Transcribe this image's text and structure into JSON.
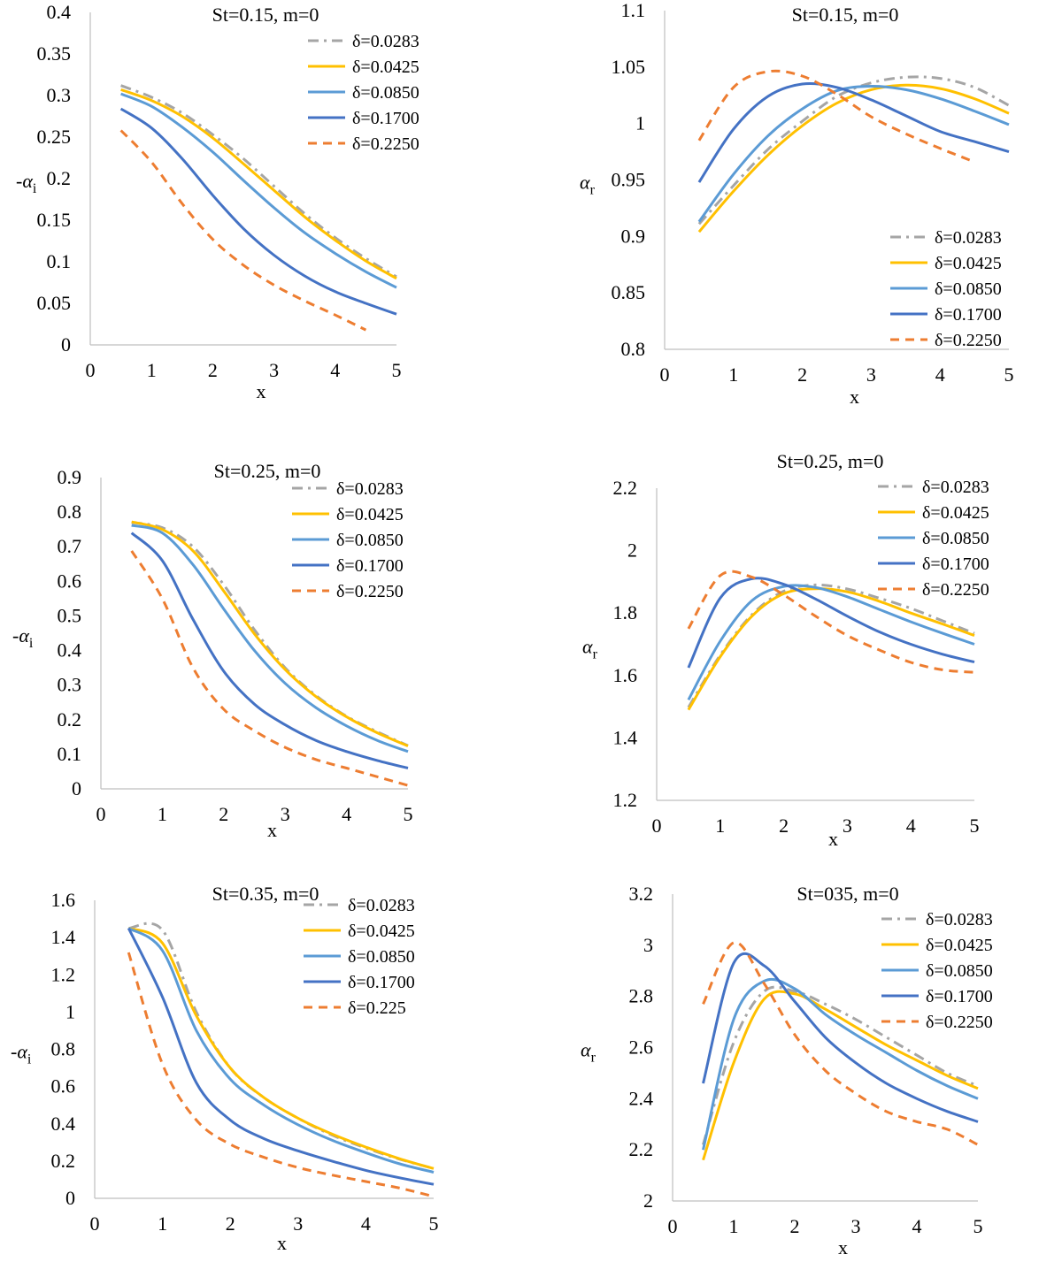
{
  "colors": {
    "d0283": "#a5a5a5",
    "d0425": "#ffc000",
    "d0850": "#5b9bd5",
    "d1700": "#4472c4",
    "d2250": "#ed7d31",
    "axis": "#bfbfbf"
  },
  "chart_data": [
    {
      "type": "line",
      "title": "St=0.15, m=0",
      "xlabel": "x",
      "ylabel_prefix": "-",
      "ylabel": "α",
      "ylabel_sub": "i",
      "xlim": [
        0,
        5
      ],
      "ylim": [
        0,
        0.4
      ],
      "xticks": [
        0,
        1,
        2,
        3,
        4,
        5
      ],
      "ytick_labels": [
        "0",
        "0.05",
        "0.1",
        "0.15",
        "0.2",
        "0.25",
        "0.3",
        "0.35",
        "0.4"
      ],
      "series": [
        {
          "name": "δ=0.0283",
          "key": "d0283",
          "style": "dashdot",
          "x": [
            0.5,
            1,
            1.5,
            2,
            2.5,
            3,
            3.5,
            4,
            4.5,
            5
          ],
          "values": [
            0.312,
            0.298,
            0.279,
            0.253,
            0.224,
            0.191,
            0.158,
            0.129,
            0.104,
            0.082
          ]
        },
        {
          "name": "δ=0.0425",
          "key": "d0425",
          "style": "solid",
          "x": [
            0.5,
            1,
            1.5,
            2,
            2.5,
            3,
            3.5,
            4,
            4.5,
            5
          ],
          "values": [
            0.307,
            0.294,
            0.275,
            0.249,
            0.218,
            0.186,
            0.154,
            0.126,
            0.101,
            0.08
          ]
        },
        {
          "name": "δ=0.0850",
          "key": "d0850",
          "style": "solid",
          "x": [
            0.5,
            1,
            1.5,
            2,
            2.5,
            3,
            3.5,
            4,
            4.5,
            5
          ],
          "values": [
            0.302,
            0.287,
            0.262,
            0.232,
            0.198,
            0.165,
            0.135,
            0.11,
            0.088,
            0.069
          ]
        },
        {
          "name": "δ=0.1700",
          "key": "d1700",
          "style": "solid",
          "x": [
            0.5,
            1,
            1.5,
            2,
            2.5,
            3,
            3.5,
            4,
            4.5,
            5
          ],
          "values": [
            0.284,
            0.261,
            0.224,
            0.18,
            0.14,
            0.108,
            0.083,
            0.064,
            0.05,
            0.037
          ]
        },
        {
          "name": "δ=0.2250",
          "key": "d2250",
          "style": "dashed",
          "x": [
            0.5,
            1,
            1.5,
            2,
            2.5,
            3,
            3.5,
            4,
            4.5
          ],
          "values": [
            0.258,
            0.22,
            0.17,
            0.127,
            0.096,
            0.072,
            0.053,
            0.036,
            0.018
          ]
        }
      ]
    },
    {
      "type": "line",
      "title": "St=0.15, m=0",
      "xlabel": "x",
      "ylabel_prefix": "",
      "ylabel": "α",
      "ylabel_sub": "r",
      "xlim": [
        0,
        5
      ],
      "ylim": [
        0.8,
        1.1
      ],
      "xticks": [
        0,
        1,
        2,
        3,
        4,
        5
      ],
      "ytick_labels": [
        "0.8",
        "0.85",
        "0.9",
        "0.95",
        "1",
        "1.05",
        "1.1"
      ],
      "series": [
        {
          "name": "δ=0.0283",
          "key": "d0283",
          "style": "dashdot",
          "x": [
            0.5,
            1,
            1.5,
            2,
            2.5,
            3,
            3.5,
            4,
            4.5,
            5
          ],
          "values": [
            0.911,
            0.945,
            0.977,
            1.002,
            1.024,
            1.036,
            1.041,
            1.04,
            1.032,
            1.016
          ]
        },
        {
          "name": "δ=0.0425",
          "key": "d0425",
          "style": "solid",
          "x": [
            0.5,
            1,
            1.5,
            2,
            2.5,
            3,
            3.5,
            4,
            4.5,
            5
          ],
          "values": [
            0.904,
            0.94,
            0.972,
            0.998,
            1.018,
            1.03,
            1.034,
            1.031,
            1.022,
            1.009
          ]
        },
        {
          "name": "δ=0.0850",
          "key": "d0850",
          "style": "solid",
          "x": [
            0.5,
            1,
            1.5,
            2,
            2.5,
            3,
            3.5,
            4,
            4.5,
            5
          ],
          "values": [
            0.913,
            0.955,
            0.989,
            1.013,
            1.029,
            1.033,
            1.03,
            1.022,
            1.011,
            0.999
          ]
        },
        {
          "name": "δ=0.1700",
          "key": "d1700",
          "style": "solid",
          "x": [
            0.5,
            1,
            1.5,
            2,
            2.5,
            3,
            3.5,
            4,
            4.5,
            5
          ],
          "values": [
            0.948,
            0.995,
            1.024,
            1.035,
            1.032,
            1.021,
            1.007,
            0.993,
            0.984,
            0.975
          ]
        },
        {
          "name": "δ=0.2250",
          "key": "d2250",
          "style": "dashed",
          "x": [
            0.5,
            1,
            1.5,
            2,
            2.5,
            3,
            3.5,
            4,
            4.5
          ],
          "values": [
            0.985,
            1.032,
            1.046,
            1.042,
            1.026,
            1.006,
            0.991,
            0.978,
            0.966
          ]
        }
      ]
    },
    {
      "type": "line",
      "title": "St=0.25, m=0",
      "xlabel": "x",
      "ylabel_prefix": "-",
      "ylabel": "α",
      "ylabel_sub": "i",
      "xlim": [
        0,
        5
      ],
      "ylim": [
        0,
        0.9
      ],
      "xticks": [
        0,
        1,
        2,
        3,
        4,
        5
      ],
      "ytick_labels": [
        "0",
        "0.1",
        "0.2",
        "0.3",
        "0.4",
        "0.5",
        "0.6",
        "0.7",
        "0.8",
        "0.9"
      ],
      "series": [
        {
          "name": "δ=0.0283",
          "key": "d0283",
          "style": "dashdot",
          "x": [
            0.5,
            1,
            1.5,
            2,
            2.5,
            3,
            3.5,
            4,
            4.5,
            5
          ],
          "values": [
            0.77,
            0.755,
            0.7,
            0.59,
            0.46,
            0.35,
            0.27,
            0.21,
            0.165,
            0.125
          ]
        },
        {
          "name": "δ=0.0425",
          "key": "d0425",
          "style": "solid",
          "x": [
            0.5,
            1,
            1.5,
            2,
            2.5,
            3,
            3.5,
            4,
            4.5,
            5
          ],
          "values": [
            0.772,
            0.75,
            0.688,
            0.572,
            0.448,
            0.345,
            0.267,
            0.208,
            0.162,
            0.124
          ]
        },
        {
          "name": "δ=0.0850",
          "key": "d0850",
          "style": "solid",
          "x": [
            0.5,
            1,
            1.5,
            2,
            2.5,
            3,
            3.5,
            4,
            4.5,
            5
          ],
          "values": [
            0.762,
            0.74,
            0.648,
            0.52,
            0.4,
            0.305,
            0.235,
            0.182,
            0.14,
            0.108
          ]
        },
        {
          "name": "δ=0.1700",
          "key": "d1700",
          "style": "solid",
          "x": [
            0.5,
            1,
            1.5,
            2,
            2.5,
            3,
            3.5,
            4,
            4.5,
            5
          ],
          "values": [
            0.74,
            0.66,
            0.49,
            0.34,
            0.245,
            0.185,
            0.14,
            0.108,
            0.082,
            0.06
          ]
        },
        {
          "name": "δ=0.2250",
          "key": "d2250",
          "style": "dashed",
          "x": [
            0.5,
            1,
            1.5,
            2,
            2.5,
            3,
            3.5,
            4,
            4.5,
            5
          ],
          "values": [
            0.688,
            0.55,
            0.35,
            0.23,
            0.168,
            0.12,
            0.085,
            0.06,
            0.035,
            0.01
          ]
        }
      ]
    },
    {
      "type": "line",
      "title": "St=0.25, m=0",
      "xlabel": "x",
      "ylabel_prefix": "",
      "ylabel": "α",
      "ylabel_sub": "r",
      "xlim": [
        0,
        5
      ],
      "ylim": [
        1.2,
        2.2
      ],
      "xticks": [
        0,
        1,
        2,
        3,
        4,
        5
      ],
      "ytick_labels": [
        "1.2",
        "1.4",
        "1.6",
        "1.8",
        "2",
        "2.2"
      ],
      "series": [
        {
          "name": "δ=0.0283",
          "key": "d0283",
          "style": "dashdot",
          "x": [
            0.5,
            1,
            1.5,
            2,
            2.5,
            3,
            3.5,
            4,
            4.5,
            5
          ],
          "values": [
            1.498,
            1.665,
            1.795,
            1.87,
            1.89,
            1.877,
            1.848,
            1.815,
            1.775,
            1.735
          ]
        },
        {
          "name": "δ=0.0425",
          "key": "d0425",
          "style": "solid",
          "x": [
            0.5,
            1,
            1.5,
            2,
            2.5,
            3,
            3.5,
            4,
            4.5,
            5
          ],
          "values": [
            1.49,
            1.66,
            1.79,
            1.862,
            1.878,
            1.868,
            1.838,
            1.8,
            1.765,
            1.728
          ]
        },
        {
          "name": "δ=0.0850",
          "key": "d0850",
          "style": "solid",
          "x": [
            0.5,
            1,
            1.5,
            2,
            2.5,
            3,
            3.5,
            4,
            4.5,
            5
          ],
          "values": [
            1.522,
            1.71,
            1.84,
            1.885,
            1.882,
            1.852,
            1.812,
            1.772,
            1.735,
            1.7
          ]
        },
        {
          "name": "δ=0.1700",
          "key": "d1700",
          "style": "solid",
          "x": [
            0.5,
            1,
            1.5,
            2,
            2.5,
            3,
            3.5,
            4,
            4.5,
            5
          ],
          "values": [
            1.625,
            1.848,
            1.91,
            1.892,
            1.845,
            1.79,
            1.74,
            1.7,
            1.668,
            1.643
          ]
        },
        {
          "name": "δ=0.2250",
          "key": "d2250",
          "style": "dashed",
          "x": [
            0.5,
            1,
            1.5,
            2,
            2.5,
            3,
            3.5,
            4,
            4.5,
            5
          ],
          "values": [
            1.75,
            1.92,
            1.915,
            1.858,
            1.79,
            1.728,
            1.682,
            1.642,
            1.618,
            1.61
          ]
        }
      ]
    },
    {
      "type": "line",
      "title": "St=0.35, m=0",
      "xlabel": "x",
      "ylabel_prefix": "-",
      "ylabel": "α",
      "ylabel_sub": "i",
      "xlim": [
        0,
        5
      ],
      "ylim": [
        0,
        1.6
      ],
      "xticks": [
        0,
        1,
        2,
        3,
        4,
        5
      ],
      "ytick_labels": [
        "0",
        "0.2",
        "0.4",
        "0.6",
        "0.8",
        "1",
        "1.2",
        "1.4",
        "1.6"
      ],
      "series": [
        {
          "name": "δ=0.0283",
          "key": "d0283",
          "style": "dashdot",
          "x": [
            0.5,
            1,
            1.5,
            2,
            2.5,
            3,
            3.5,
            4,
            4.5,
            5
          ],
          "values": [
            1.45,
            1.44,
            1.0,
            0.7,
            0.54,
            0.43,
            0.34,
            0.27,
            0.21,
            0.16
          ]
        },
        {
          "name": "δ=0.0425",
          "key": "d0425",
          "style": "solid",
          "x": [
            0.5,
            1,
            1.5,
            2,
            2.5,
            3,
            3.5,
            4,
            4.5,
            5
          ],
          "values": [
            1.45,
            1.37,
            0.98,
            0.7,
            0.54,
            0.43,
            0.345,
            0.275,
            0.212,
            0.16
          ]
        },
        {
          "name": "δ=0.0850",
          "key": "d0850",
          "style": "solid",
          "x": [
            0.5,
            1,
            1.5,
            2,
            2.5,
            3,
            3.5,
            4,
            4.5,
            5
          ],
          "values": [
            1.45,
            1.33,
            0.9,
            0.64,
            0.5,
            0.395,
            0.312,
            0.245,
            0.185,
            0.14
          ]
        },
        {
          "name": "δ=0.1700",
          "key": "d1700",
          "style": "solid",
          "x": [
            0.5,
            1,
            1.5,
            2,
            2.5,
            3,
            3.5,
            4,
            4.5,
            5
          ],
          "values": [
            1.45,
            1.08,
            0.62,
            0.42,
            0.32,
            0.255,
            0.2,
            0.15,
            0.11,
            0.075
          ]
        },
        {
          "name": "δ=0.225",
          "key": "d2250",
          "style": "dashed",
          "x": [
            0.5,
            1,
            1.5,
            2,
            2.5,
            3,
            3.5,
            4,
            4.5,
            5
          ],
          "values": [
            1.32,
            0.72,
            0.42,
            0.29,
            0.22,
            0.165,
            0.125,
            0.09,
            0.055,
            0.01
          ]
        }
      ]
    },
    {
      "type": "line",
      "title": "St=035, m=0",
      "xlabel": "x",
      "ylabel_prefix": "",
      "ylabel": "α",
      "ylabel_sub": "r",
      "xlim": [
        0,
        5
      ],
      "ylim": [
        2,
        3.2
      ],
      "xticks": [
        0,
        1,
        2,
        3,
        4,
        5
      ],
      "ytick_labels": [
        "2",
        "2.2",
        "2.4",
        "2.6",
        "2.8",
        "3",
        "3.2"
      ],
      "series": [
        {
          "name": "δ=0.0283",
          "key": "d0283",
          "style": "dashdot",
          "x": [
            0.5,
            1,
            1.5,
            2,
            2.5,
            3,
            3.5,
            4,
            4.5,
            5
          ],
          "values": [
            2.22,
            2.62,
            2.82,
            2.82,
            2.77,
            2.71,
            2.64,
            2.57,
            2.5,
            2.45
          ]
        },
        {
          "name": "δ=0.0425",
          "key": "d0425",
          "style": "solid",
          "x": [
            0.5,
            1,
            1.5,
            2,
            2.5,
            3,
            3.5,
            4,
            4.5,
            5
          ],
          "values": [
            2.16,
            2.54,
            2.79,
            2.81,
            2.75,
            2.68,
            2.61,
            2.55,
            2.49,
            2.44
          ]
        },
        {
          "name": "δ=0.0850",
          "key": "d0850",
          "style": "solid",
          "x": [
            0.5,
            1,
            1.5,
            2,
            2.5,
            3,
            3.5,
            4,
            4.5,
            5
          ],
          "values": [
            2.2,
            2.71,
            2.86,
            2.83,
            2.73,
            2.65,
            2.58,
            2.51,
            2.45,
            2.4
          ]
        },
        {
          "name": "δ=0.1700",
          "key": "d1700",
          "style": "solid",
          "x": [
            0.5,
            1,
            1.5,
            2,
            2.5,
            3,
            3.5,
            4,
            4.5,
            5
          ],
          "values": [
            2.46,
            2.93,
            2.92,
            2.78,
            2.64,
            2.54,
            2.46,
            2.4,
            2.35,
            2.31
          ]
        },
        {
          "name": "δ=0.2250",
          "key": "d2250",
          "style": "dashed",
          "x": [
            0.5,
            1,
            1.5,
            2,
            2.5,
            3,
            3.5,
            4,
            4.5,
            5
          ],
          "values": [
            2.77,
            3.01,
            2.85,
            2.65,
            2.51,
            2.42,
            2.35,
            2.31,
            2.28,
            2.22
          ]
        }
      ]
    }
  ]
}
